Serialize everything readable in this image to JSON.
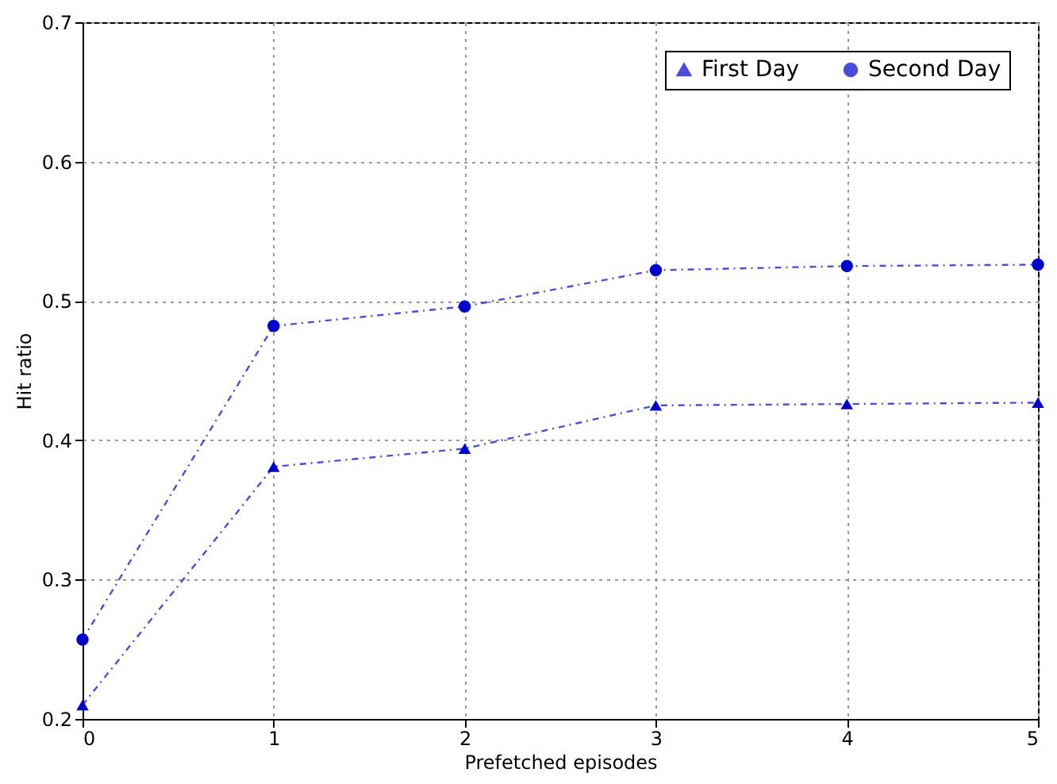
{
  "chart_data": {
    "type": "line",
    "xlabel": "Prefetched episodes",
    "ylabel": "Hit ratio",
    "x": [
      0,
      1,
      2,
      3,
      4,
      5
    ],
    "series": [
      {
        "name": "First Day",
        "color": "#0000cc",
        "marker": "triangle",
        "values": [
          0.21,
          0.381,
          0.394,
          0.425,
          0.426,
          0.427
        ]
      },
      {
        "name": "Second Day",
        "color": "#0000cc",
        "marker": "circle",
        "values": [
          0.257,
          0.482,
          0.496,
          0.522,
          0.525,
          0.526
        ]
      }
    ],
    "xlim": [
      0,
      5
    ],
    "xticks": [
      0,
      1,
      2,
      3,
      4,
      5
    ],
    "ylim": [
      0.2,
      0.7
    ],
    "yticks": [
      0.2,
      0.3,
      0.4,
      0.5,
      0.6,
      0.7
    ],
    "grid": true,
    "legend": "top right",
    "line_style": "dashed"
  }
}
